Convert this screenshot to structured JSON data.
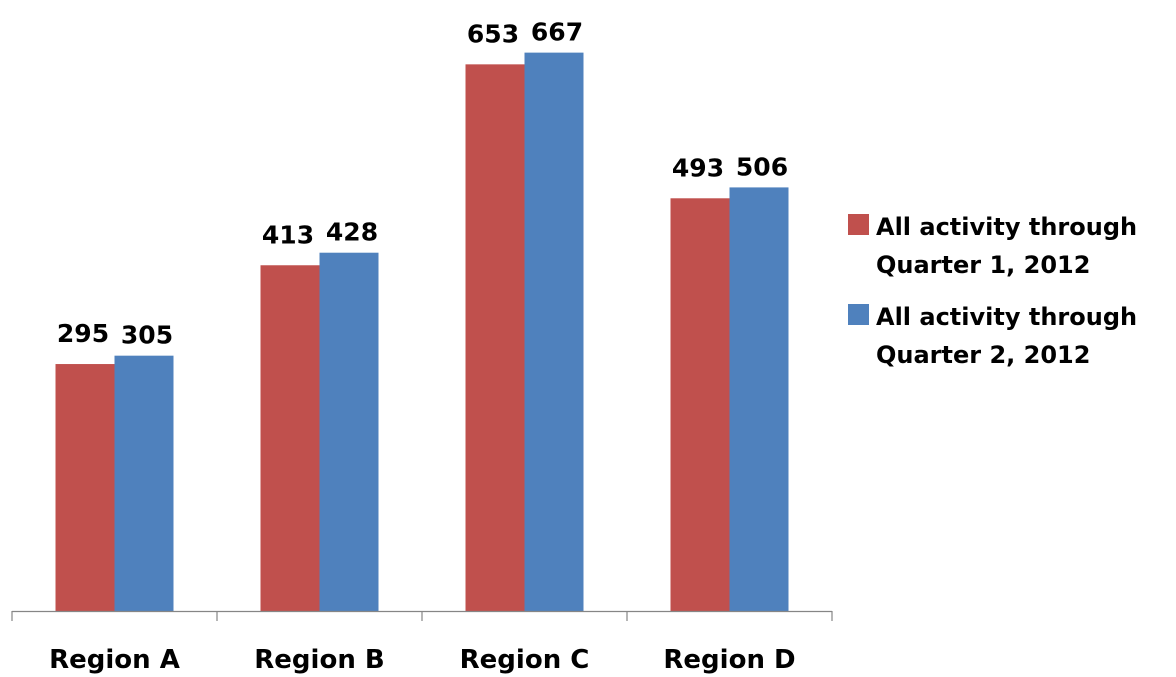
{
  "chart_data": {
    "type": "bar",
    "categories": [
      "Region A",
      "Region B",
      "Region C",
      "Region D"
    ],
    "series": [
      {
        "name": "All activity through Quarter 1, 2012",
        "values": [
          295,
          413,
          653,
          493
        ],
        "color": "#C0504D"
      },
      {
        "name": "All activity through Quarter 2, 2012",
        "values": [
          305,
          428,
          667,
          506
        ],
        "color": "#4F81BD"
      }
    ],
    "title": "",
    "xlabel": "",
    "ylabel": "",
    "ylim": [
      0,
      700
    ],
    "grid": false,
    "legend_position": "right",
    "data_labels": true
  }
}
